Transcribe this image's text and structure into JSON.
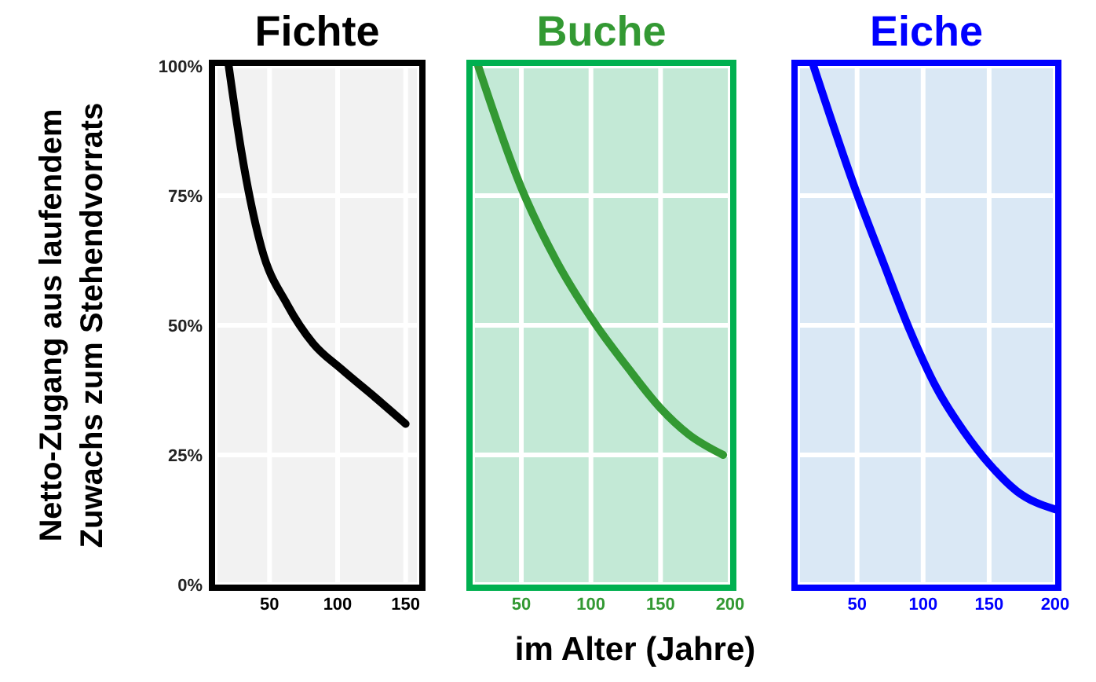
{
  "chart_data": [
    {
      "type": "line",
      "title": "Fichte",
      "ylabel": "Netto-Zugang aus laufendem Zuwachs zum Stehendvorrats",
      "x": [
        20,
        29,
        44,
        63,
        82,
        103,
        128,
        150
      ],
      "values": [
        100,
        84,
        65,
        54,
        46.5,
        41.5,
        36,
        31
      ],
      "color": "#000000",
      "xlim": [
        10,
        160
      ],
      "xticks": [
        50,
        100,
        150
      ],
      "ylim": [
        0,
        100
      ],
      "yticks": [
        {
          "value": 0,
          "label": "0%"
        },
        {
          "value": 25,
          "label": "25%"
        },
        {
          "value": 50,
          "label": "50%"
        },
        {
          "value": 75,
          "label": "75%"
        },
        {
          "value": 100,
          "label": "100%"
        }
      ],
      "grid": true
    },
    {
      "type": "line",
      "title": "Buche",
      "xlabel": "im Alter (Jahre)",
      "x": [
        19,
        50,
        75,
        100,
        126,
        150,
        170,
        195
      ],
      "values": [
        100,
        76.5,
        62.5,
        51.5,
        42,
        34,
        29,
        25
      ],
      "color": "#339933",
      "xlim": [
        15,
        200
      ],
      "xticks": [
        50,
        100,
        150,
        200
      ],
      "ylim": [
        0,
        100
      ],
      "yticks": [
        0,
        25,
        50,
        75,
        100
      ],
      "grid": true,
      "tick_labels": "x"
    },
    {
      "type": "line",
      "title": "Eiche",
      "x": [
        17,
        49,
        70,
        90,
        110,
        131,
        151,
        171,
        200
      ],
      "values": [
        100,
        76,
        62,
        49,
        38,
        29.5,
        23,
        18,
        14.5
      ],
      "color": "#0000ff",
      "xlim": [
        5,
        200
      ],
      "xticks": [
        50,
        100,
        150,
        200
      ],
      "ylim": [
        0,
        100
      ],
      "yticks": [
        0,
        25,
        50,
        75,
        100
      ],
      "grid": true,
      "tick_labels": "x"
    }
  ]
}
